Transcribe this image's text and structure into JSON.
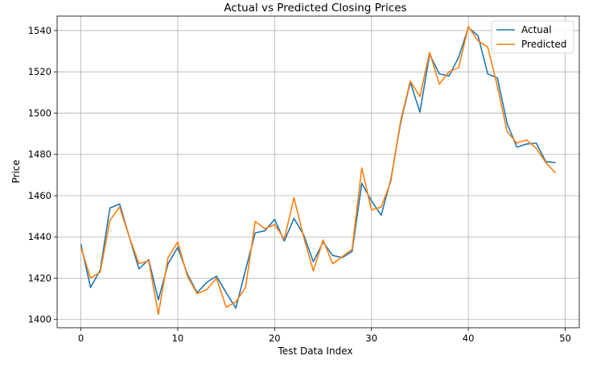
{
  "chart_data": {
    "type": "line",
    "title": "Actual vs Predicted Closing Prices",
    "xlabel": "Test Data Index",
    "ylabel": "Price",
    "xlim": [
      -2.45,
      51.45
    ],
    "ylim": [
      1396,
      1547
    ],
    "xticks": [
      0,
      10,
      20,
      30,
      40,
      50
    ],
    "yticks": [
      1400,
      1420,
      1440,
      1460,
      1480,
      1500,
      1520,
      1540
    ],
    "grid": true,
    "legend_position": "top-right",
    "x": [
      0,
      1,
      2,
      3,
      4,
      5,
      6,
      7,
      8,
      9,
      10,
      11,
      12,
      13,
      14,
      15,
      16,
      17,
      18,
      19,
      20,
      21,
      22,
      23,
      24,
      25,
      26,
      27,
      28,
      29,
      30,
      31,
      32,
      33,
      34,
      35,
      36,
      37,
      38,
      39,
      40,
      41,
      42,
      43,
      44,
      45,
      46,
      47,
      48,
      49
    ],
    "series": [
      {
        "name": "Actual",
        "color": "#1f77b4",
        "values": [
          1436.5,
          1415.5,
          1424,
          1454,
          1456,
          1440,
          1424.5,
          1429,
          1409.5,
          1427,
          1435,
          1422,
          1413,
          1418,
          1421,
          1413,
          1405.5,
          1424,
          1442,
          1443,
          1448.5,
          1438,
          1449,
          1441,
          1428,
          1437.5,
          1431,
          1430,
          1433,
          1466,
          1457.5,
          1450.5,
          1468,
          1495,
          1515,
          1500.5,
          1528.5,
          1519,
          1518,
          1527,
          1541.5,
          1537.5,
          1519,
          1517,
          1495,
          1483.5,
          1485,
          1485.5,
          1476.5,
          1476
        ]
      },
      {
        "name": "Predicted",
        "color": "#ff7f0e",
        "values": [
          1435,
          1420,
          1423,
          1448,
          1454.5,
          1440,
          1427,
          1428.5,
          1402.5,
          1430,
          1437.5,
          1421,
          1412.5,
          1414.5,
          1420,
          1406,
          1408.5,
          1415.5,
          1447.5,
          1444,
          1446,
          1439,
          1459,
          1440,
          1423.5,
          1438.5,
          1427,
          1430.5,
          1434,
          1473.5,
          1453,
          1454.5,
          1467,
          1496,
          1515.5,
          1508,
          1529.5,
          1514,
          1520,
          1522,
          1542,
          1535,
          1532,
          1513,
          1491,
          1485.5,
          1487,
          1483,
          1476,
          1471
        ]
      }
    ]
  }
}
